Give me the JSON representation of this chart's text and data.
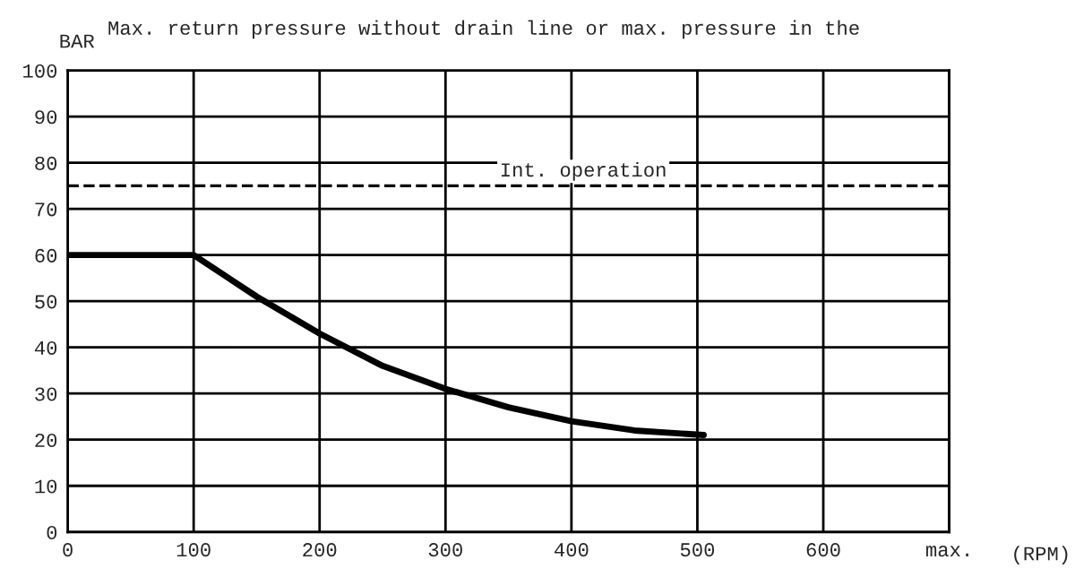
{
  "chart_data": {
    "type": "line",
    "title": "Max. return pressure without drain line or max. pressure in the",
    "ylabel": "BAR",
    "xlabel": "(RPM)",
    "x": [
      0,
      100,
      150,
      200,
      250,
      300,
      350,
      400,
      450,
      505
    ],
    "series": [
      {
        "color": "#000000",
        "values": [
          60,
          60,
          51,
          43,
          36,
          31,
          27,
          24,
          22,
          21
        ]
      }
    ],
    "xlim": [
      0,
      700
    ],
    "xticks": [
      0,
      100,
      200,
      300,
      400,
      500,
      600,
      {
        "value": 700,
        "label": "max."
      }
    ],
    "ylim": [
      0,
      100
    ],
    "yticks": [
      0,
      10,
      20,
      30,
      40,
      50,
      60,
      70,
      80,
      90,
      100
    ],
    "ref_lines": [
      {
        "axis": "y",
        "value": 75,
        "label": "Int. operation",
        "color": "#000000",
        "line_style": "dashed"
      }
    ],
    "grid": true,
    "marker": "none",
    "line_style": "solid"
  }
}
